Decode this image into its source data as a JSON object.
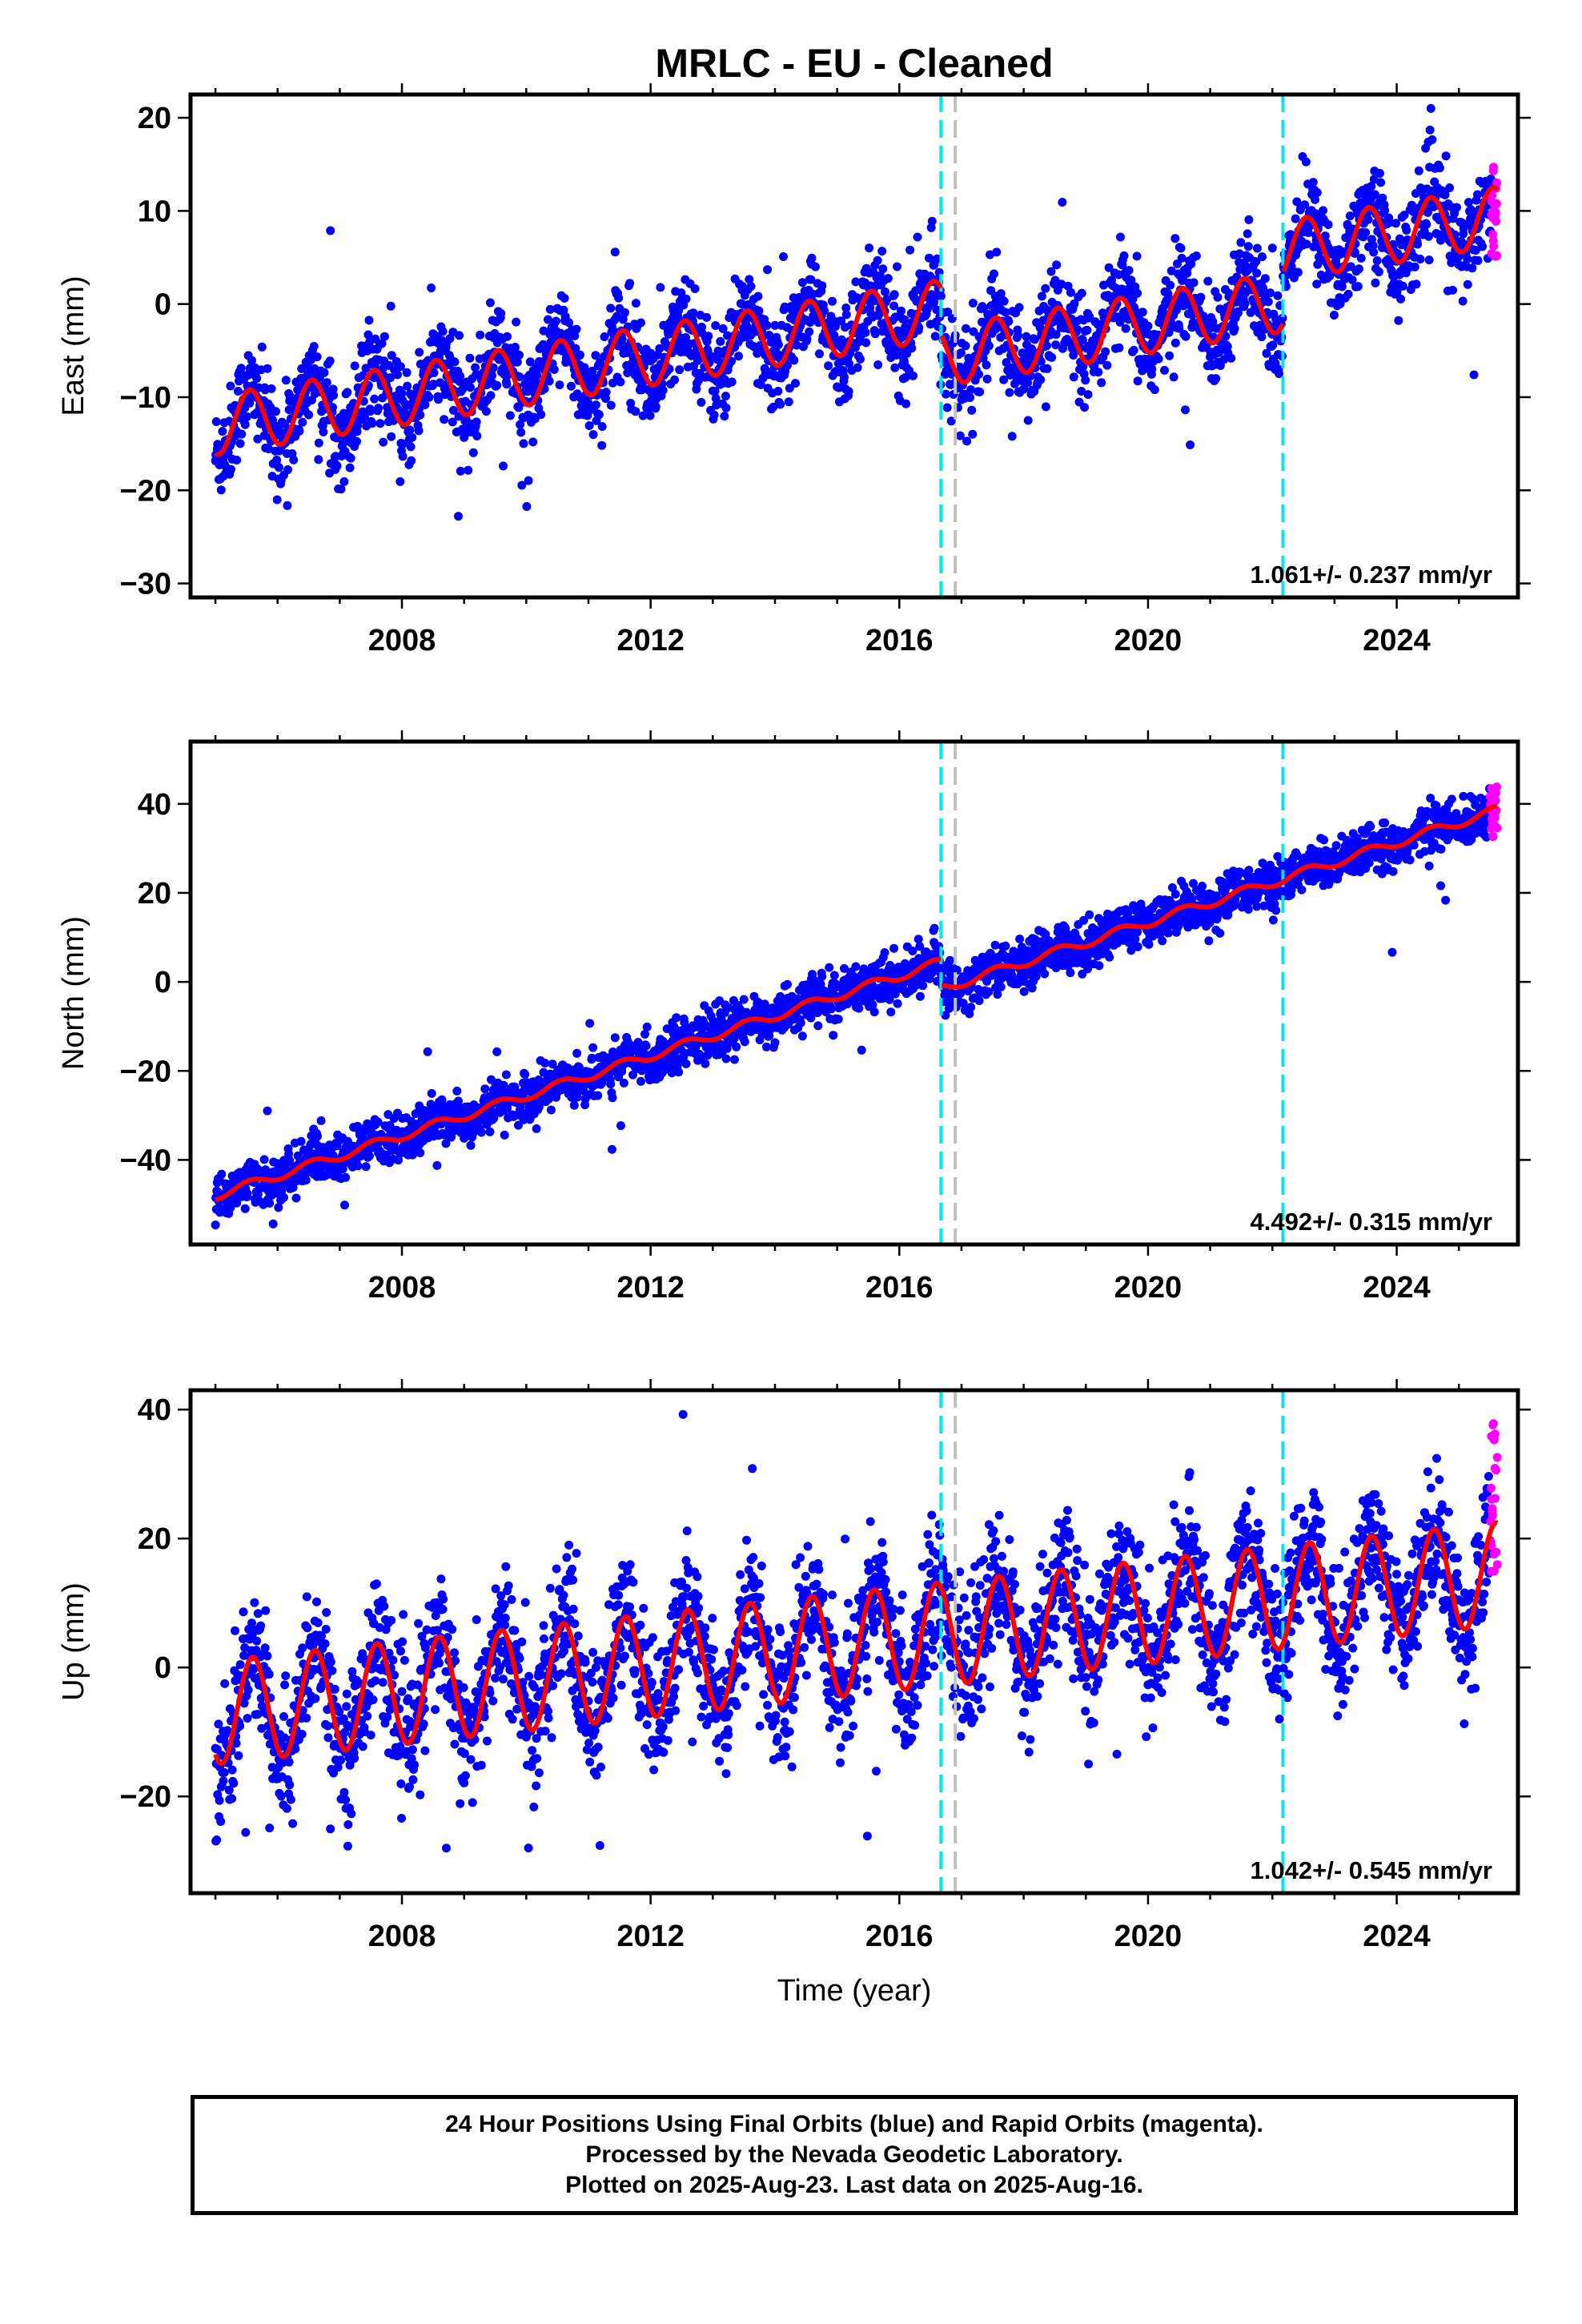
{
  "title": "MRLC  - EU - Cleaned",
  "colors": {
    "final_orbits": "#0000ff",
    "rapid_orbits": "#ff00ff",
    "model_fit": "#ff0000",
    "event_cyan": "#00e5ee",
    "event_gray": "#c0c0c0"
  },
  "chart_data": [
    {
      "type": "scatter",
      "id": "east",
      "ylabel": "East (mm)",
      "xlabel": "",
      "xlim": [
        2004.6,
        2025.95
      ],
      "ylim": [
        -31.5,
        22.5
      ],
      "x_ticks": [
        2008,
        2012,
        2016,
        2020,
        2024
      ],
      "y_ticks": [
        -30,
        -20,
        -10,
        0,
        10,
        20
      ],
      "start": 2005.0,
      "end": 2025.62,
      "offset": -13.0,
      "rate_per_yr": 1.061,
      "seasonal_amplitude": 3.2,
      "seasonal_phase_year": 0.3,
      "noise": 2.5,
      "steps": [
        {
          "x": 2016.67,
          "dy": -5.0
        },
        {
          "x": 2022.17,
          "dy": 5.5
        }
      ],
      "rate_text": "1.061+/- 0.237 mm/yr",
      "event_lines": [
        {
          "x": 2016.67,
          "color": "cyan"
        },
        {
          "x": 2016.9,
          "color": "gray"
        },
        {
          "x": 2022.17,
          "color": "cyan"
        }
      ],
      "rapid_range": [
        5,
        15
      ]
    },
    {
      "type": "scatter",
      "id": "north",
      "ylabel": "North (mm)",
      "xlabel": "",
      "xlim": [
        2004.6,
        2025.95
      ],
      "ylim": [
        -59,
        54
      ],
      "x_ticks": [
        2008,
        2012,
        2016,
        2020,
        2024
      ],
      "y_ticks": [
        -40,
        -20,
        0,
        20,
        40
      ],
      "start": 2005.0,
      "end": 2025.62,
      "offset": -48.0,
      "rate_per_yr": 4.492,
      "seasonal_amplitude": 1.0,
      "seasonal_phase_year": 0.3,
      "noise": 2.6,
      "steps": [
        {
          "x": 2016.67,
          "dy": -6.0
        }
      ],
      "rate_text": "4.492+/- 0.315 mm/yr",
      "event_lines": [
        {
          "x": 2016.67,
          "color": "cyan"
        },
        {
          "x": 2016.9,
          "color": "gray"
        },
        {
          "x": 2022.17,
          "color": "cyan"
        }
      ],
      "rapid_range": [
        32,
        44
      ]
    },
    {
      "type": "scatter",
      "id": "up",
      "ylabel": "Up (mm)",
      "xlabel": "Time (year)",
      "xlim": [
        2004.6,
        2025.95
      ],
      "ylim": [
        -35,
        43
      ],
      "x_ticks": [
        2008,
        2012,
        2016,
        2020,
        2024
      ],
      "y_ticks": [
        -20,
        0,
        20,
        40
      ],
      "start": 2005.0,
      "end": 2025.62,
      "offset": -7.0,
      "rate_per_yr": 1.042,
      "seasonal_amplitude": 8.0,
      "seasonal_phase_year": 0.35,
      "noise": 5.0,
      "steps": [],
      "rate_text": "1.042+/- 0.545 mm/yr",
      "event_lines": [
        {
          "x": 2016.67,
          "color": "cyan"
        },
        {
          "x": 2016.9,
          "color": "gray"
        },
        {
          "x": 2022.17,
          "color": "cyan"
        }
      ],
      "rapid_range": [
        12,
        38
      ]
    }
  ],
  "footer": {
    "line1": "24 Hour Positions Using Final Orbits (blue) and Rapid Orbits (magenta).",
    "line2": "Processed by the Nevada Geodetic Laboratory.",
    "line3": "Plotted on 2025-Aug-23. Last data on 2025-Aug-16."
  }
}
